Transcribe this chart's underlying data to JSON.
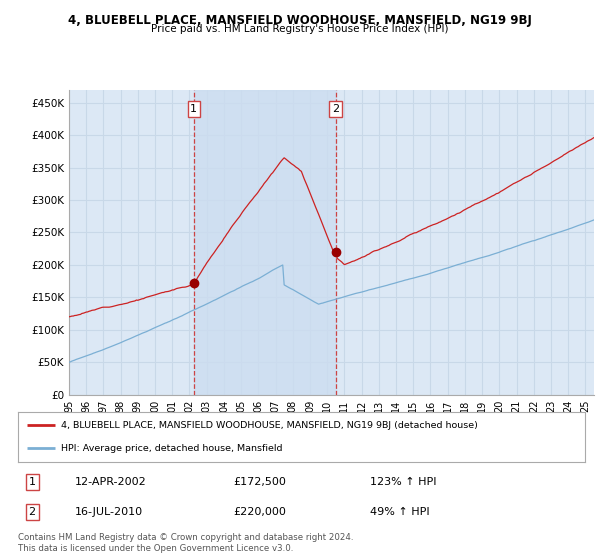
{
  "title": "4, BLUEBELL PLACE, MANSFIELD WOODHOUSE, MANSFIELD, NG19 9BJ",
  "subtitle": "Price paid vs. HM Land Registry's House Price Index (HPI)",
  "ylabel_ticks": [
    "£0",
    "£50K",
    "£100K",
    "£150K",
    "£200K",
    "£250K",
    "£300K",
    "£350K",
    "£400K",
    "£450K"
  ],
  "ytick_values": [
    0,
    50000,
    100000,
    150000,
    200000,
    250000,
    300000,
    350000,
    400000,
    450000
  ],
  "ylim": [
    0,
    470000
  ],
  "x_start_year": 1995,
  "x_end_year": 2025,
  "plot_bg_color": "#dce8f5",
  "grid_color": "#c8d8e8",
  "between_shading_color": "#ccddf0",
  "legend_entry1": "4, BLUEBELL PLACE, MANSFIELD WOODHOUSE, MANSFIELD, NG19 9BJ (detached house)",
  "legend_entry2": "HPI: Average price, detached house, Mansfield",
  "sale1_date": "12-APR-2002",
  "sale1_price": "£172,500",
  "sale1_hpi": "123% ↑ HPI",
  "sale2_date": "16-JUL-2010",
  "sale2_price": "£220,000",
  "sale2_hpi": "49% ↑ HPI",
  "footer": "Contains HM Land Registry data © Crown copyright and database right 2024.\nThis data is licensed under the Open Government Licence v3.0.",
  "hpi_line_color": "#7bafd4",
  "price_line_color": "#cc2222",
  "vline_color": "#cc4444",
  "sale_dot_color": "#990000",
  "box_edge_color": "#cc4444"
}
